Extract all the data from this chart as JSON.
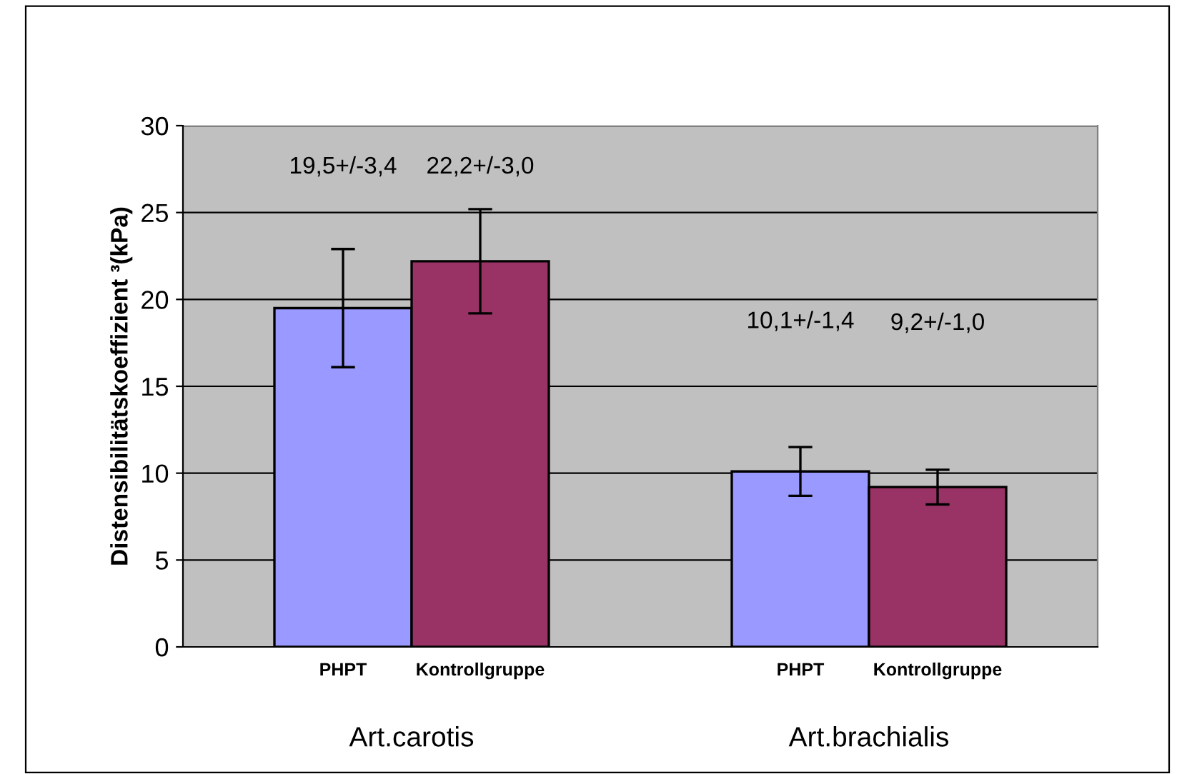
{
  "chart_data": {
    "type": "bar",
    "ylabel": "Distensibilitätskoeffizient ³(kPa)",
    "categories": [
      "Art.carotis",
      "Art.brachialis"
    ],
    "series": [
      {
        "name": "PHPT",
        "color": "#9999ff",
        "values": [
          19.5,
          10.1
        ],
        "errors": [
          3.4,
          1.4
        ]
      },
      {
        "name": "Kontrollgruppe",
        "color": "#993366",
        "values": [
          22.2,
          9.2
        ],
        "errors": [
          3.0,
          1.0
        ]
      }
    ],
    "annotations": [
      "19,5+/-3,4",
      "10,1+/-1,4",
      "22,2+/-3,0",
      "9,2+/-1,0"
    ],
    "ylim": [
      0,
      30
    ],
    "yticks": [
      0,
      5,
      10,
      15,
      20,
      25,
      30
    ],
    "grid": "y",
    "legend": false
  }
}
